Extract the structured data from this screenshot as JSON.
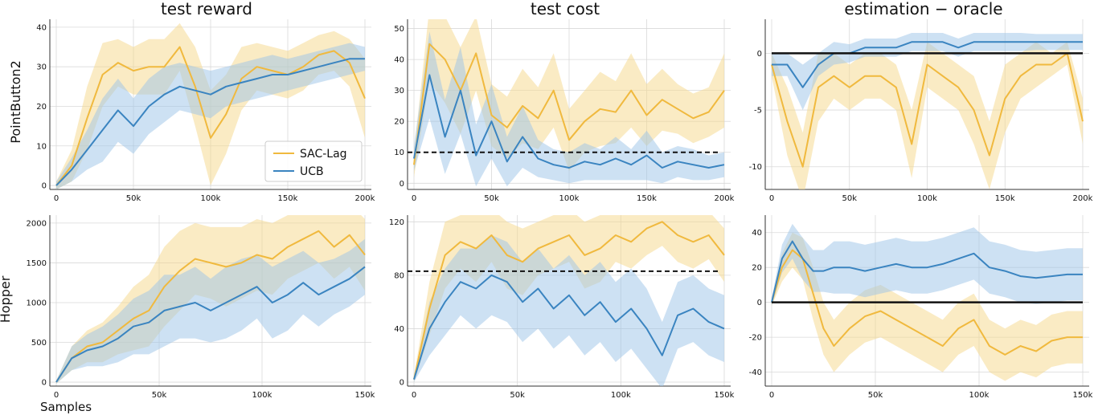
{
  "colors": {
    "sac": "#f0b93e",
    "ucb": "#3a84c0",
    "sac_band": "#f6d88a",
    "ucb_band": "#9cc4e8",
    "threshold": "#111111"
  },
  "x_axis_label": "Samples",
  "chart_data": [
    {
      "type": "line",
      "row": 0,
      "col": 0,
      "title": "test reward",
      "row_label": "PointButton2",
      "xlim": [
        0,
        200000
      ],
      "ylim": [
        -1,
        42
      ],
      "xticks": [
        0,
        50000,
        100000,
        150000,
        200000
      ],
      "xtick_labels": [
        "0",
        "50k",
        "100k",
        "150k",
        "200k"
      ],
      "yticks": [
        0,
        10,
        20,
        30,
        40
      ],
      "ytick_labels": [
        "0",
        "10",
        "20",
        "30",
        "40"
      ],
      "legend": {
        "position": "bottom-right",
        "entries": [
          "SAC-Lag",
          "UCB"
        ]
      },
      "series": [
        {
          "name": "SAC-Lag",
          "color_key": "sac",
          "x": [
            0,
            10000,
            20000,
            30000,
            40000,
            50000,
            60000,
            70000,
            80000,
            90000,
            100000,
            110000,
            120000,
            130000,
            140000,
            150000,
            160000,
            170000,
            180000,
            190000,
            200000
          ],
          "values": [
            0,
            5,
            17,
            28,
            31,
            29,
            30,
            30,
            35,
            25,
            12,
            18,
            27,
            30,
            29,
            28,
            30,
            33,
            34,
            31,
            22
          ],
          "spread": [
            1,
            4,
            8,
            8,
            6,
            6,
            7,
            7,
            6,
            10,
            12,
            10,
            8,
            6,
            6,
            6,
            6,
            5,
            5,
            6,
            10
          ]
        },
        {
          "name": "UCB",
          "color_key": "ucb",
          "x": [
            0,
            10000,
            20000,
            30000,
            40000,
            50000,
            60000,
            70000,
            80000,
            90000,
            100000,
            110000,
            120000,
            130000,
            140000,
            150000,
            160000,
            170000,
            180000,
            190000,
            200000
          ],
          "values": [
            0,
            4,
            9,
            14,
            19,
            15,
            20,
            23,
            25,
            24,
            23,
            25,
            26,
            27,
            28,
            28,
            29,
            30,
            31,
            32,
            32
          ],
          "spread": [
            1,
            3,
            5,
            8,
            8,
            7,
            7,
            7,
            6,
            6,
            6,
            5,
            5,
            5,
            5,
            4,
            4,
            4,
            4,
            4,
            3
          ]
        }
      ]
    },
    {
      "type": "line",
      "row": 0,
      "col": 1,
      "title": "test cost",
      "row_label": "",
      "xlim": [
        0,
        200000
      ],
      "ylim": [
        -2,
        53
      ],
      "xticks": [
        0,
        50000,
        100000,
        150000,
        200000
      ],
      "xtick_labels": [
        "0",
        "50k",
        "100k",
        "150k",
        "200k"
      ],
      "yticks": [
        0,
        10,
        20,
        30,
        40,
        50
      ],
      "ytick_labels": [
        "0",
        "10",
        "20",
        "30",
        "40",
        "50"
      ],
      "threshold": 10,
      "series": [
        {
          "name": "SAC-Lag",
          "color_key": "sac",
          "x": [
            0,
            10000,
            20000,
            30000,
            40000,
            50000,
            60000,
            70000,
            80000,
            90000,
            100000,
            110000,
            120000,
            130000,
            140000,
            150000,
            160000,
            170000,
            180000,
            190000,
            200000
          ],
          "values": [
            6,
            45,
            40,
            30,
            42,
            22,
            18,
            25,
            21,
            30,
            14,
            20,
            24,
            23,
            30,
            22,
            27,
            24,
            21,
            23,
            30
          ],
          "spread": [
            4,
            12,
            14,
            14,
            12,
            10,
            10,
            12,
            10,
            12,
            10,
            10,
            12,
            10,
            12,
            10,
            10,
            8,
            8,
            8,
            12
          ]
        },
        {
          "name": "UCB",
          "color_key": "ucb",
          "x": [
            0,
            10000,
            20000,
            30000,
            40000,
            50000,
            60000,
            70000,
            80000,
            90000,
            100000,
            110000,
            120000,
            130000,
            140000,
            150000,
            160000,
            170000,
            180000,
            190000,
            200000
          ],
          "values": [
            8,
            35,
            15,
            30,
            9,
            20,
            7,
            15,
            8,
            6,
            5,
            7,
            6,
            8,
            6,
            9,
            5,
            7,
            6,
            5,
            6
          ],
          "spread": [
            4,
            14,
            12,
            14,
            10,
            12,
            8,
            10,
            6,
            5,
            5,
            6,
            5,
            7,
            5,
            8,
            5,
            5,
            5,
            4,
            4
          ]
        }
      ]
    },
    {
      "type": "line",
      "row": 0,
      "col": 2,
      "title": "estimation − oracle",
      "row_label": "",
      "xlim": [
        0,
        200000
      ],
      "ylim": [
        -12,
        3
      ],
      "xticks": [
        0,
        50000,
        100000,
        150000,
        200000
      ],
      "xtick_labels": [
        "0",
        "50k",
        "100k",
        "150k",
        "200k"
      ],
      "yticks": [
        -10,
        -5,
        0
      ],
      "ytick_labels": [
        "-10",
        "-5",
        "0"
      ],
      "reference": 0,
      "series": [
        {
          "name": "SAC-Lag",
          "color_key": "sac",
          "x": [
            0,
            10000,
            20000,
            30000,
            40000,
            50000,
            60000,
            70000,
            80000,
            90000,
            100000,
            110000,
            120000,
            130000,
            140000,
            150000,
            160000,
            170000,
            180000,
            190000,
            200000
          ],
          "values": [
            -1,
            -6,
            -10,
            -3,
            -2,
            -3,
            -2,
            -2,
            -3,
            -8,
            -1,
            -2,
            -3,
            -5,
            -9,
            -4,
            -2,
            -1,
            -1,
            0,
            -6
          ],
          "spread": [
            1,
            3,
            3,
            3,
            2,
            2,
            2,
            2,
            2,
            3,
            2,
            2,
            2,
            3,
            3,
            3,
            2,
            2,
            1,
            1,
            2
          ]
        },
        {
          "name": "UCB",
          "color_key": "ucb",
          "x": [
            0,
            10000,
            20000,
            30000,
            40000,
            50000,
            60000,
            70000,
            80000,
            90000,
            100000,
            110000,
            120000,
            130000,
            140000,
            150000,
            160000,
            170000,
            180000,
            190000,
            200000
          ],
          "values": [
            -1,
            -1,
            -3,
            -1,
            0,
            0,
            0.5,
            0.5,
            0.5,
            1,
            1,
            1,
            0.5,
            1,
            1,
            1,
            1,
            1,
            1,
            1,
            1
          ],
          "spread": [
            1,
            1,
            2,
            1,
            1,
            0.8,
            0.8,
            0.8,
            0.8,
            0.8,
            0.8,
            0.8,
            0.8,
            0.8,
            0.8,
            0.8,
            0.8,
            0.7,
            0.7,
            0.7,
            0.7
          ]
        }
      ]
    },
    {
      "type": "line",
      "row": 1,
      "col": 0,
      "title": "",
      "row_label": "Hopper",
      "xlim": [
        0,
        150000
      ],
      "ylim": [
        -50,
        2100
      ],
      "xticks": [
        0,
        50000,
        100000,
        150000
      ],
      "xtick_labels": [
        "0",
        "50k",
        "100k",
        "150k"
      ],
      "yticks": [
        0,
        500,
        1000,
        1500,
        2000
      ],
      "ytick_labels": [
        "0",
        "500",
        "1000",
        "1500",
        "2000"
      ],
      "series": [
        {
          "name": "SAC-Lag",
          "color_key": "sac",
          "x": [
            0,
            7500,
            15000,
            22500,
            30000,
            37500,
            45000,
            52500,
            60000,
            67500,
            75000,
            82500,
            90000,
            97500,
            105000,
            112500,
            120000,
            127500,
            135000,
            142500,
            150000
          ],
          "values": [
            0,
            300,
            450,
            500,
            650,
            800,
            900,
            1200,
            1400,
            1550,
            1500,
            1450,
            1500,
            1600,
            1550,
            1700,
            1800,
            1900,
            1700,
            1850,
            1600
          ],
          "spread": [
            20,
            150,
            200,
            250,
            300,
            400,
            450,
            500,
            500,
            450,
            450,
            500,
            450,
            450,
            450,
            400,
            400,
            400,
            400,
            400,
            450
          ]
        },
        {
          "name": "UCB",
          "color_key": "ucb",
          "x": [
            0,
            7500,
            15000,
            22500,
            30000,
            37500,
            45000,
            52500,
            60000,
            67500,
            75000,
            82500,
            90000,
            97500,
            105000,
            112500,
            120000,
            127500,
            135000,
            142500,
            150000
          ],
          "values": [
            0,
            300,
            400,
            450,
            550,
            700,
            750,
            900,
            950,
            1000,
            900,
            1000,
            1100,
            1200,
            1000,
            1100,
            1250,
            1100,
            1200,
            1300,
            1450
          ],
          "spread": [
            20,
            150,
            200,
            250,
            300,
            350,
            400,
            450,
            400,
            450,
            400,
            450,
            450,
            400,
            450,
            450,
            400,
            400,
            350,
            350,
            350
          ]
        }
      ]
    },
    {
      "type": "line",
      "row": 1,
      "col": 1,
      "title": "",
      "row_label": "",
      "xlim": [
        0,
        150000
      ],
      "ylim": [
        -3,
        125
      ],
      "xticks": [
        0,
        50000,
        100000,
        150000
      ],
      "xtick_labels": [
        "0",
        "50k",
        "100k",
        "150k"
      ],
      "yticks": [
        0,
        40,
        80,
        120
      ],
      "ytick_labels": [
        "0",
        "40",
        "80",
        "120"
      ],
      "threshold": 83,
      "series": [
        {
          "name": "SAC-Lag",
          "color_key": "sac",
          "x": [
            0,
            7500,
            15000,
            22500,
            30000,
            37500,
            45000,
            52500,
            60000,
            67500,
            75000,
            82500,
            90000,
            97500,
            105000,
            112500,
            120000,
            127500,
            135000,
            142500,
            150000
          ],
          "values": [
            2,
            55,
            95,
            105,
            100,
            110,
            95,
            90,
            100,
            105,
            110,
            95,
            100,
            110,
            105,
            115,
            120,
            110,
            105,
            110,
            95
          ],
          "spread": [
            2,
            20,
            25,
            20,
            25,
            20,
            25,
            25,
            20,
            20,
            20,
            25,
            25,
            20,
            20,
            20,
            18,
            20,
            20,
            18,
            20
          ]
        },
        {
          "name": "UCB",
          "color_key": "ucb",
          "x": [
            0,
            7500,
            15000,
            22500,
            30000,
            37500,
            45000,
            52500,
            60000,
            67500,
            75000,
            82500,
            90000,
            97500,
            105000,
            112500,
            120000,
            127500,
            135000,
            142500,
            150000
          ],
          "values": [
            2,
            40,
            60,
            75,
            70,
            80,
            75,
            60,
            70,
            55,
            65,
            50,
            60,
            45,
            55,
            40,
            20,
            50,
            55,
            45,
            40
          ],
          "spread": [
            2,
            20,
            25,
            25,
            30,
            30,
            30,
            30,
            30,
            30,
            30,
            30,
            30,
            30,
            30,
            30,
            25,
            25,
            25,
            25,
            25
          ]
        }
      ]
    },
    {
      "type": "line",
      "row": 1,
      "col": 2,
      "title": "",
      "row_label": "",
      "xlim": [
        0,
        150000
      ],
      "ylim": [
        -48,
        50
      ],
      "xticks": [
        0,
        50000,
        100000,
        150000
      ],
      "xtick_labels": [
        "0",
        "50k",
        "100k",
        "150k"
      ],
      "yticks": [
        -40,
        -20,
        0,
        20,
        40
      ],
      "ytick_labels": [
        "-40",
        "-20",
        "0",
        "20",
        "40"
      ],
      "reference": 0,
      "series": [
        {
          "name": "SAC-Lag",
          "color_key": "sac",
          "x": [
            0,
            5000,
            10000,
            15000,
            20000,
            25000,
            30000,
            37500,
            45000,
            52500,
            60000,
            67500,
            75000,
            82500,
            90000,
            97500,
            105000,
            112500,
            120000,
            127500,
            135000,
            142500,
            150000
          ],
          "values": [
            0,
            20,
            30,
            25,
            5,
            -15,
            -25,
            -15,
            -8,
            -5,
            -10,
            -15,
            -20,
            -25,
            -15,
            -10,
            -25,
            -30,
            -25,
            -28,
            -22,
            -20,
            -20
          ],
          "spread": [
            2,
            8,
            10,
            12,
            15,
            15,
            15,
            15,
            15,
            15,
            15,
            15,
            15,
            15,
            15,
            15,
            15,
            15,
            15,
            15,
            15,
            15,
            15
          ]
        },
        {
          "name": "UCB",
          "color_key": "ucb",
          "x": [
            0,
            5000,
            10000,
            15000,
            20000,
            25000,
            30000,
            37500,
            45000,
            52500,
            60000,
            67500,
            75000,
            82500,
            90000,
            97500,
            105000,
            112500,
            120000,
            127500,
            135000,
            142500,
            150000
          ],
          "values": [
            0,
            25,
            35,
            25,
            18,
            18,
            20,
            20,
            18,
            20,
            22,
            20,
            20,
            22,
            25,
            28,
            20,
            18,
            15,
            14,
            15,
            16,
            16
          ],
          "spread": [
            2,
            8,
            10,
            12,
            12,
            12,
            15,
            15,
            15,
            15,
            15,
            15,
            15,
            15,
            15,
            15,
            15,
            15,
            15,
            15,
            15,
            15,
            15
          ]
        }
      ]
    }
  ]
}
